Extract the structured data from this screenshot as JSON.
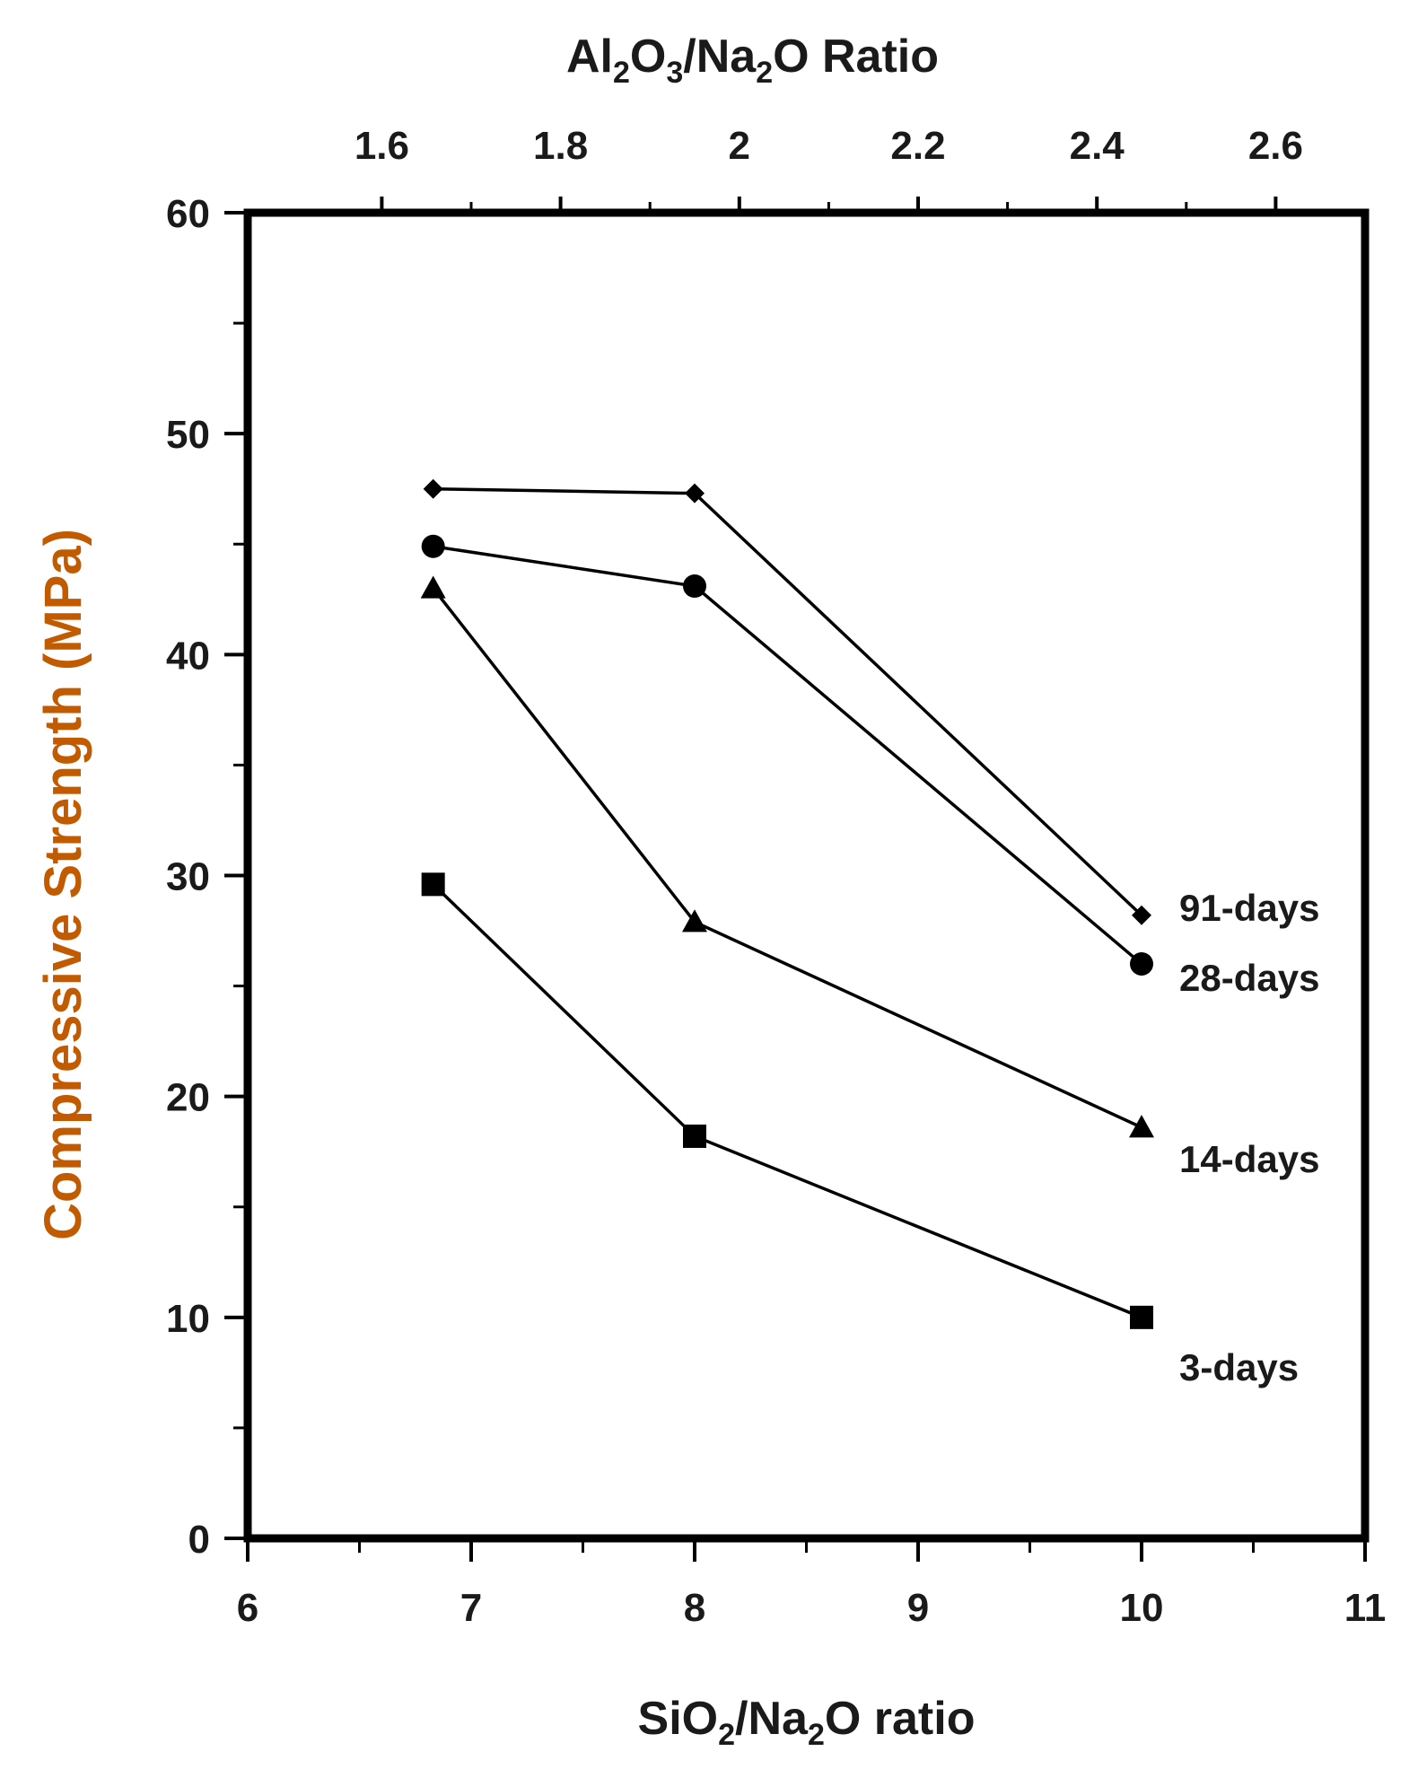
{
  "chart_data": {
    "type": "line",
    "title": "",
    "xlabel": {
      "parts": [
        {
          "text": "SiO",
          "sub": false
        },
        {
          "text": "2",
          "sub": true
        },
        {
          "text": "/Na",
          "sub": false
        },
        {
          "text": "2",
          "sub": true
        },
        {
          "text": "O ratio",
          "sub": false
        }
      ]
    },
    "x2label": {
      "parts": [
        {
          "text": "Al",
          "sub": false
        },
        {
          "text": "2",
          "sub": true
        },
        {
          "text": "O",
          "sub": false
        },
        {
          "text": "3",
          "sub": true
        },
        {
          "text": "/Na",
          "sub": false
        },
        {
          "text": "2",
          "sub": true
        },
        {
          "text": "O Ratio",
          "sub": false
        }
      ]
    },
    "ylabel": "Compressive Strength (MPa)",
    "ylabel_color": "#c25a00",
    "xlim": [
      6,
      11
    ],
    "ylim": [
      0,
      60
    ],
    "x_ticks": [
      "6",
      "7",
      "8",
      "9",
      "10",
      "11"
    ],
    "x_tick_values": [
      6,
      7,
      8,
      9,
      10,
      11
    ],
    "y_ticks": [
      "0",
      "10",
      "20",
      "30",
      "40",
      "50",
      "60"
    ],
    "y_tick_values": [
      0,
      10,
      20,
      30,
      40,
      50,
      60
    ],
    "x2_ticks": [
      "1.6",
      "1.8",
      "2",
      "2.2",
      "2.4",
      "2.6"
    ],
    "x2_tick_positions_on_x": [
      6.6,
      7.4,
      8.2,
      9.0,
      9.8,
      10.6
    ],
    "grid": false,
    "series": [
      {
        "name": "91-days",
        "marker": "diamond",
        "x": [
          6.83,
          8.0,
          10.0
        ],
        "y": [
          47.5,
          47.3,
          28.2
        ]
      },
      {
        "name": "28-days",
        "marker": "circle",
        "x": [
          6.83,
          8.0,
          10.0
        ],
        "y": [
          44.9,
          43.1,
          26.0
        ]
      },
      {
        "name": "14-days",
        "marker": "triangle",
        "x": [
          6.83,
          8.0,
          10.0
        ],
        "y": [
          43.0,
          27.9,
          18.6
        ]
      },
      {
        "name": "3-days",
        "marker": "square",
        "x": [
          6.83,
          8.0,
          10.0
        ],
        "y": [
          29.6,
          18.2,
          10.0
        ]
      }
    ]
  }
}
